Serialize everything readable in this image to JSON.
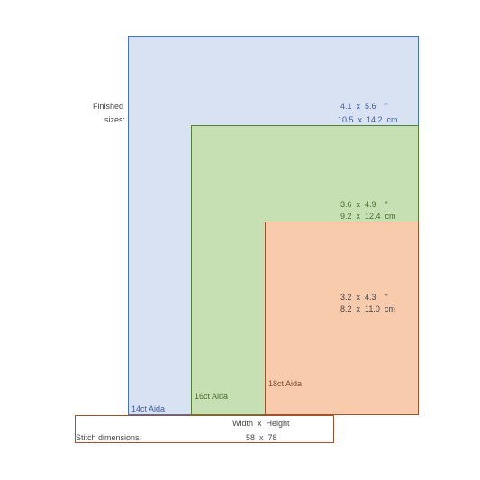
{
  "labels": {
    "finished": "Finished",
    "sizes": "sizes:",
    "stitch_dimensions": "Stitch dimensions:",
    "width_height_header": "Width  x  Height",
    "stitch_values": "58  x  78"
  },
  "fabrics": [
    {
      "name": "14ct Aida",
      "inches": "4.1  x  5.6    \"",
      "cm": "10.5  x  14.2  cm"
    },
    {
      "name": "16ct Aida",
      "inches": "3.6  x  4.9    \"",
      "cm": "9.2  x  12.4  cm"
    },
    {
      "name": "18ct Aida",
      "inches": "3.2  x  4.3    \"",
      "cm": "8.2  x  11.0  cm"
    }
  ],
  "colors": {
    "fabric_14_fill": "#d9e2f3",
    "fabric_14_border": "#4472c4",
    "fabric_16_fill": "#c6e0b4",
    "fabric_16_border": "#548235",
    "fabric_18_fill": "#f8cbad",
    "fabric_18_border": "#a0522d"
  }
}
